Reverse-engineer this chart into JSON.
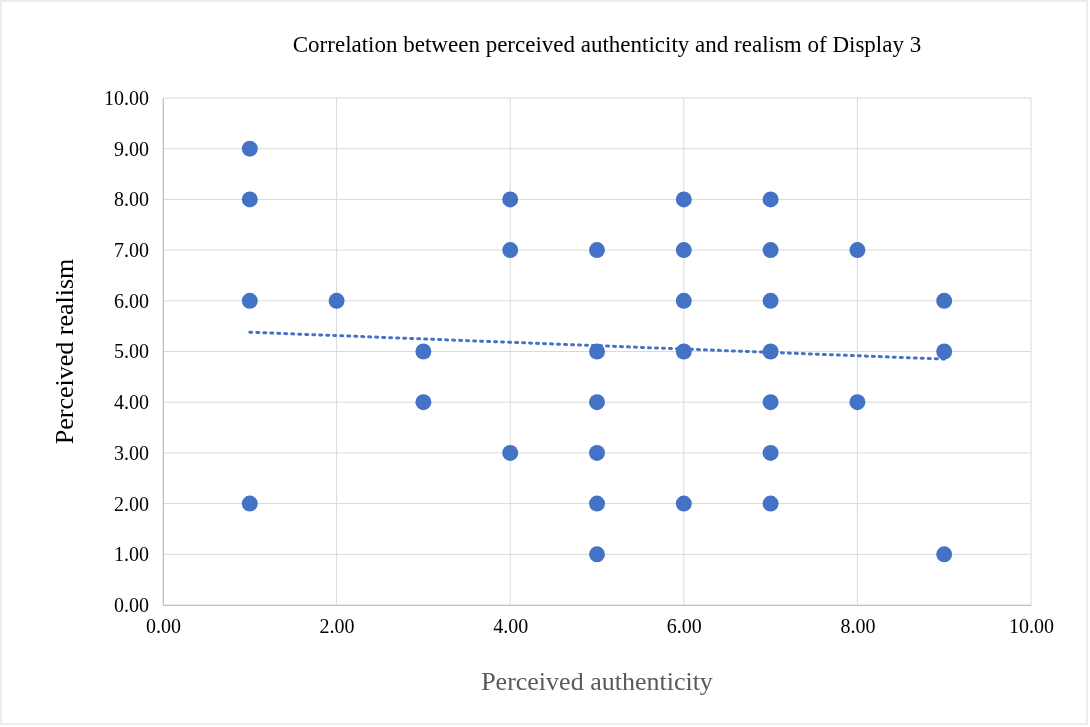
{
  "chart_data": {
    "type": "scatter",
    "title": "Correlation between perceived authenticity and realism of Display 3",
    "xlabel": "Perceived authenticity",
    "ylabel": "Perceived realism",
    "series": [
      {
        "type": "scatter",
        "color": "#4472c4",
        "marker": "circle",
        "x": [
          1,
          1,
          1,
          1,
          2,
          3,
          3,
          4,
          4,
          4,
          5,
          5,
          5,
          5,
          5,
          5,
          6,
          6,
          6,
          6,
          6,
          7,
          7,
          7,
          7,
          7,
          7,
          7,
          8,
          8,
          9,
          9,
          9
        ],
        "values": [
          9,
          8,
          6,
          2,
          6,
          5,
          4,
          8,
          7,
          3,
          7,
          5,
          4,
          3,
          2,
          1,
          8,
          7,
          6,
          5,
          2,
          8,
          7,
          6,
          5,
          4,
          3,
          2,
          7,
          4,
          6,
          5,
          1
        ]
      },
      {
        "type": "line",
        "color": "#4472c4",
        "line_style": "dotted",
        "marker": "none",
        "x": [
          1,
          9
        ],
        "values": [
          5.38,
          4.85
        ]
      }
    ],
    "xlim": [
      0,
      10
    ],
    "ylim": [
      0,
      10
    ],
    "xticks": [
      {
        "value": 0,
        "label": "0.00"
      },
      {
        "value": 2,
        "label": "2.00"
      },
      {
        "value": 4,
        "label": "4.00"
      },
      {
        "value": 6,
        "label": "6.00"
      },
      {
        "value": 8,
        "label": "8.00"
      },
      {
        "value": 10,
        "label": "10.00"
      }
    ],
    "yticks": [
      {
        "value": 0,
        "label": "0.00"
      },
      {
        "value": 1,
        "label": "1.00"
      },
      {
        "value": 2,
        "label": "2.00"
      },
      {
        "value": 3,
        "label": "3.00"
      },
      {
        "value": 4,
        "label": "4.00"
      },
      {
        "value": 5,
        "label": "5.00"
      },
      {
        "value": 6,
        "label": "6.00"
      },
      {
        "value": 7,
        "label": "7.00"
      },
      {
        "value": 8,
        "label": "8.00"
      },
      {
        "value": 9,
        "label": "9.00"
      },
      {
        "value": 10,
        "label": "10.00"
      }
    ],
    "grid": true
  }
}
